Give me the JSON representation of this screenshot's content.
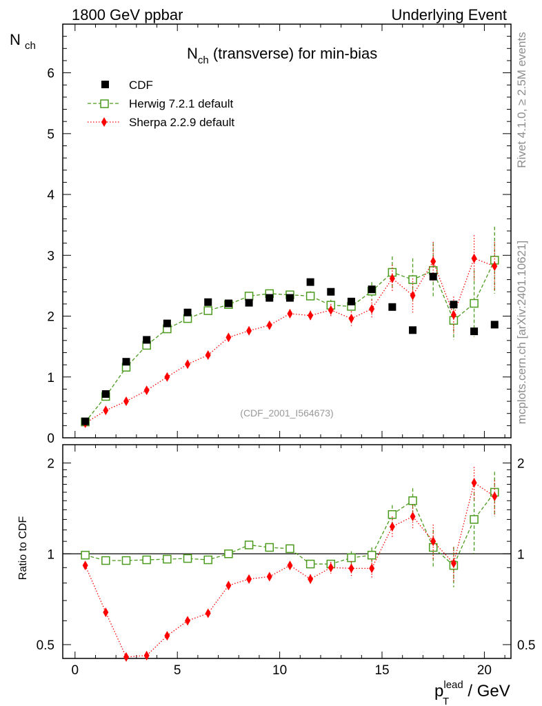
{
  "header": {
    "left": "1800 GeV ppbar",
    "right": "Underlying Event"
  },
  "side_labels": {
    "rivet": "Rivet 4.1.0, ≥ 2.5M events",
    "mcplots": "mcplots.cern.ch [arXiv:2401.10621]"
  },
  "chart_data": {
    "type": "scatter",
    "title_main": "N",
    "title_sub": "ch",
    "title_rest": " (transverse) for min-bias",
    "analysis_id": "(CDF_2001_I564673)",
    "ylabel_main": "N",
    "ylabel_sub": "ch",
    "ratio_ylabel": "Ratio to CDF",
    "xlabel_p": "p",
    "xlabel_sub": "T",
    "xlabel_sup": "lead",
    "xlabel_rest": " / GeV",
    "xlim": [
      -0.6,
      21.3
    ],
    "ylim": [
      0,
      6.8
    ],
    "ratio_ylim": [
      0.45,
      2.3
    ],
    "xticks": [
      0,
      5,
      10,
      15,
      20
    ],
    "yticks": [
      0,
      1,
      2,
      3,
      4,
      5,
      6
    ],
    "ratio_yticks": [
      0.5,
      1,
      2
    ],
    "ratio_ytick_labels": [
      "0.5",
      "1",
      "2"
    ],
    "x": [
      0.5,
      1.5,
      2.5,
      3.5,
      4.5,
      5.5,
      6.5,
      7.5,
      8.5,
      9.5,
      10.5,
      11.5,
      12.5,
      13.5,
      14.5,
      15.5,
      16.5,
      17.5,
      18.5,
      19.5,
      20.5
    ],
    "series": [
      {
        "name": "CDF",
        "color": "#000000",
        "marker": "square-filled",
        "values": [
          0.27,
          0.72,
          1.25,
          1.61,
          1.88,
          2.06,
          2.23,
          2.21,
          2.22,
          2.3,
          2.3,
          2.56,
          2.4,
          2.24,
          2.44,
          2.15,
          1.77,
          2.65,
          2.19,
          1.75,
          1.86
        ]
      },
      {
        "name": "Herwig 7.2.1 default",
        "color": "#4a9a1c",
        "marker": "square-open",
        "values": [
          0.26,
          0.68,
          1.16,
          1.52,
          1.79,
          1.96,
          2.09,
          2.19,
          2.33,
          2.37,
          2.35,
          2.33,
          2.18,
          2.16,
          2.41,
          2.72,
          2.6,
          2.75,
          1.93,
          2.21,
          2.92
        ],
        "errors": [
          0.02,
          0.03,
          0.03,
          0.03,
          0.03,
          0.04,
          0.04,
          0.04,
          0.05,
          0.05,
          0.06,
          0.08,
          0.09,
          0.1,
          0.15,
          0.26,
          0.35,
          0.45,
          0.32,
          0.55,
          0.55
        ],
        "ratio": [
          0.99,
          0.95,
          0.95,
          0.955,
          0.96,
          0.965,
          0.955,
          1.0,
          1.07,
          1.05,
          1.04,
          0.925,
          0.925,
          0.97,
          0.99,
          1.35,
          1.5,
          1.05,
          0.915,
          1.3,
          1.6
        ],
        "ratio_errors": [
          0.01,
          0.01,
          0.01,
          0.01,
          0.01,
          0.01,
          0.01,
          0.01,
          0.02,
          0.02,
          0.02,
          0.03,
          0.03,
          0.05,
          0.06,
          0.1,
          0.15,
          0.15,
          0.14,
          0.3,
          0.27
        ]
      },
      {
        "name": "Sherpa 2.2.9 default",
        "color": "#ff0000",
        "marker": "diamond-filled",
        "values": [
          0.24,
          0.45,
          0.6,
          0.78,
          1.0,
          1.21,
          1.36,
          1.65,
          1.76,
          1.85,
          2.04,
          2.01,
          2.1,
          1.96,
          2.12,
          2.62,
          2.34,
          2.9,
          2.02,
          2.95,
          2.82
        ],
        "errors": [
          0.01,
          0.02,
          0.02,
          0.02,
          0.03,
          0.03,
          0.04,
          0.04,
          0.05,
          0.06,
          0.07,
          0.08,
          0.1,
          0.12,
          0.15,
          0.22,
          0.28,
          0.32,
          0.3,
          0.38,
          0.4
        ],
        "ratio": [
          0.915,
          0.64,
          0.455,
          0.46,
          0.535,
          0.6,
          0.635,
          0.785,
          0.825,
          0.84,
          0.915,
          0.825,
          0.9,
          0.895,
          0.895,
          1.23,
          1.33,
          1.1,
          0.93,
          1.72,
          1.55
        ],
        "ratio_errors": [
          0.01,
          0.01,
          0.01,
          0.01,
          0.01,
          0.01,
          0.02,
          0.02,
          0.02,
          0.02,
          0.03,
          0.03,
          0.04,
          0.05,
          0.06,
          0.1,
          0.12,
          0.15,
          0.12,
          0.22,
          0.2
        ]
      }
    ]
  }
}
